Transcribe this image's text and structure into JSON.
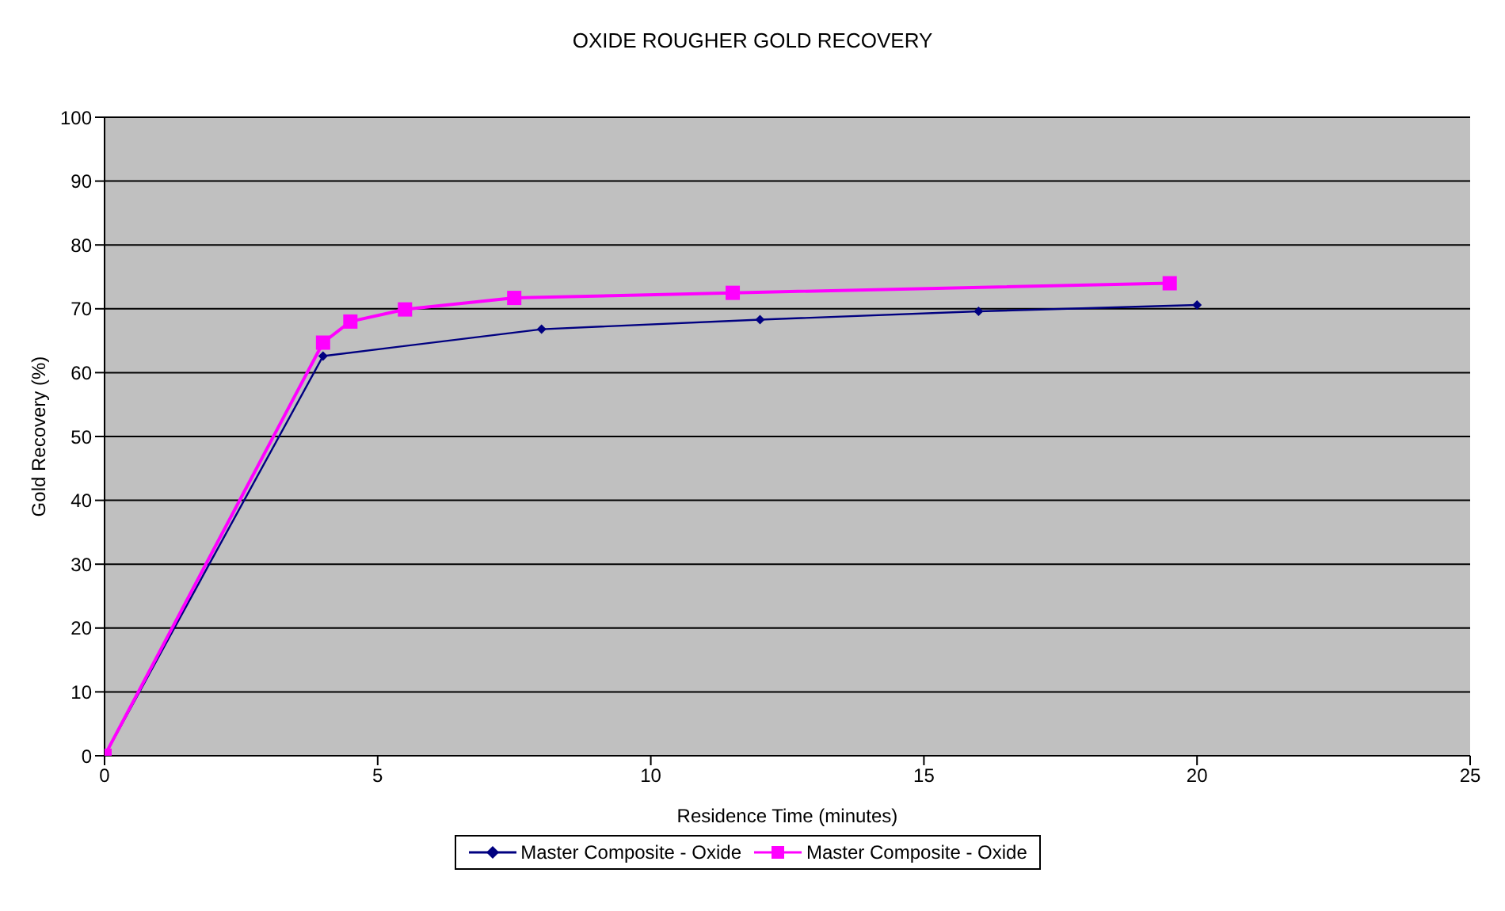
{
  "chart_data": {
    "type": "line",
    "title": "OXIDE ROUGHER GOLD RECOVERY",
    "xlabel": "Residence Time (minutes)",
    "ylabel": "Gold Recovery (%)",
    "xlim": [
      0,
      25
    ],
    "xticks": [
      0,
      5,
      10,
      15,
      20,
      25
    ],
    "ylim": [
      0,
      100
    ],
    "yticks": [
      0,
      10,
      20,
      30,
      40,
      50,
      60,
      70,
      80,
      90,
      100
    ],
    "grid": "y",
    "legend": "bottom",
    "line_style": "solid",
    "series": [
      {
        "name": "Master Composite - Oxide",
        "color": "#000080",
        "marker": "diamond",
        "x": [
          0,
          4,
          8,
          12,
          16,
          20
        ],
        "values": [
          0,
          62.6,
          66.8,
          68.3,
          69.6,
          70.6
        ]
      },
      {
        "name": "Master Composite - Oxide",
        "color": "#ff00ff",
        "marker": "square",
        "x": [
          0,
          4,
          4.5,
          5.5,
          7.5,
          11.5,
          19.5
        ],
        "values": [
          0,
          64.7,
          68,
          69.9,
          71.7,
          72.5,
          74
        ]
      }
    ]
  }
}
